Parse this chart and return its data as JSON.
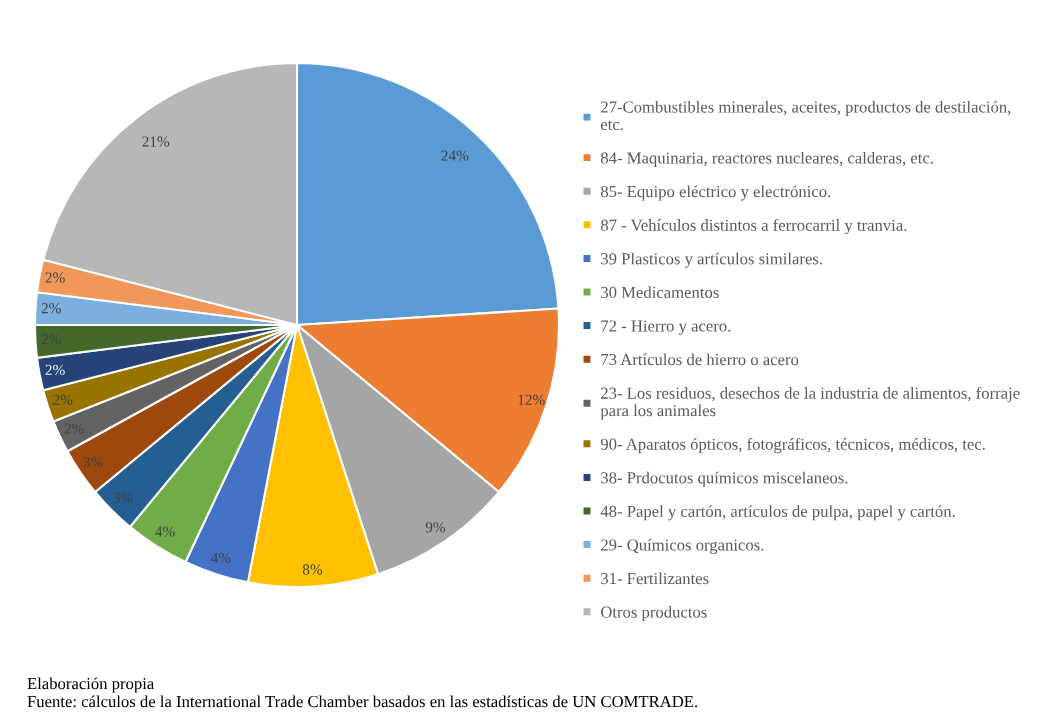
{
  "chart_data": {
    "type": "pie",
    "categories": [
      "27-Combustibles minerales, aceites, productos de destilación, etc.",
      "84- Maquinaria, reactores nucleares, calderas, etc.",
      "85- Equipo eléctrico y electrónico.",
      "87 - Vehículos distintos a ferrocarril y tranvia.",
      "39 Plasticos y artículos similares.",
      "30 Medicamentos",
      "72 - Hierro y acero.",
      "73 Artículos de hierro o acero",
      "23- Los residuos, desechos de la industria de alimentos, forraje para los animales",
      "90- Aparatos ópticos, fotográficos, técnicos, médicos, tec.",
      "38- Prdocutos químicos miscelaneos.",
      "48- Papel y cartón, artículos de pulpa, papel y cartón.",
      "29- Químicos organicos.",
      "31- Fertilizantes",
      "Otros productos"
    ],
    "values": [
      24,
      12,
      9,
      8,
      4,
      4,
      3,
      3,
      2,
      2,
      2,
      2,
      2,
      2,
      21
    ],
    "value_labels": [
      "24%",
      "12%",
      "9%",
      "8%",
      "4%",
      "4%",
      "3%",
      "3%",
      "2%",
      "2%",
      "2%",
      "2%",
      "2%",
      "2%",
      "21%"
    ],
    "colors": [
      "#5b9bd5",
      "#ed7d31",
      "#a5a5a5",
      "#ffc000",
      "#4472c4",
      "#70ad47",
      "#255e91",
      "#9e480e",
      "#636363",
      "#997300",
      "#264478",
      "#43682b",
      "#7cafdd",
      "#f1975a",
      "#b7b7b7"
    ],
    "legend": "right",
    "annotations": [
      "Elaboración propia",
      "Fuente: cálculos de la International Trade Chamber basados en las estadísticas de UN COMTRADE."
    ]
  }
}
